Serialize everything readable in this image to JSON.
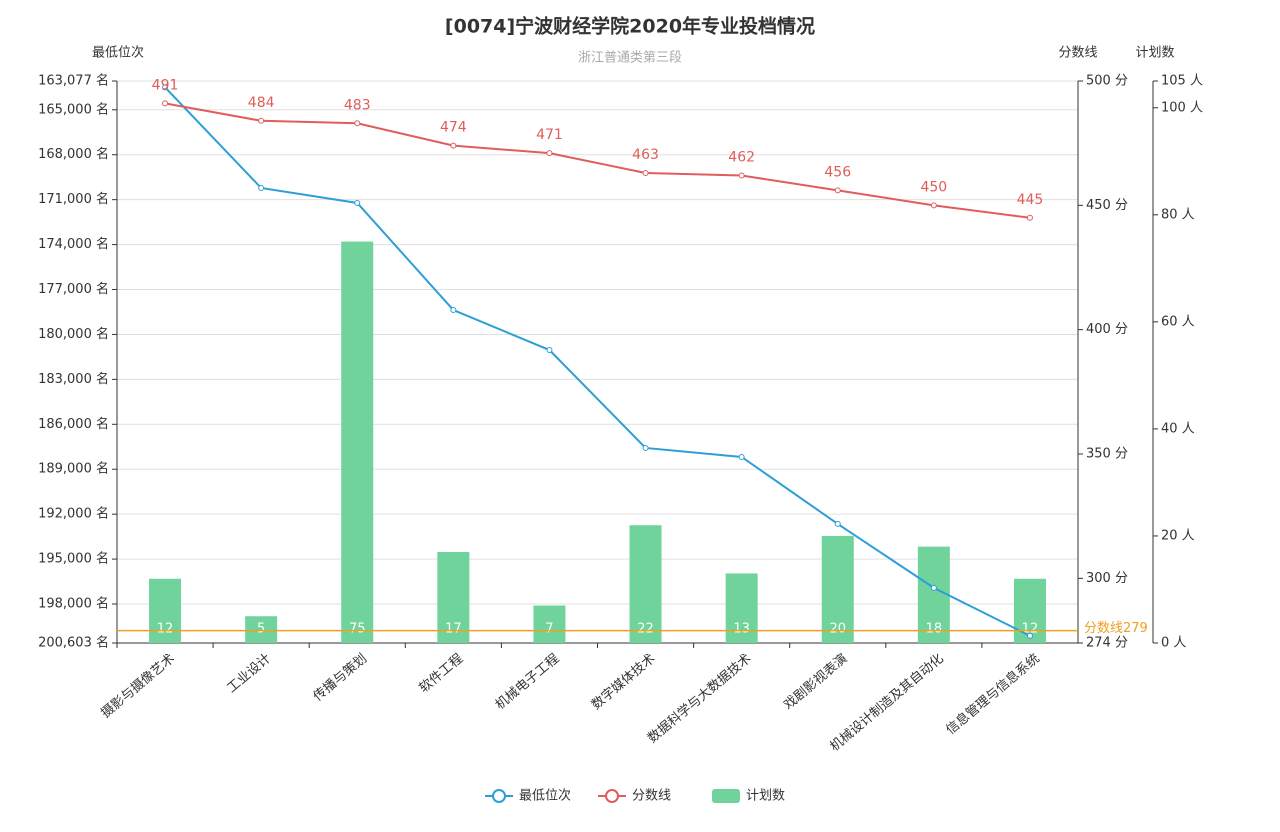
{
  "chart_data": {
    "type": "combo",
    "title": "[0074]宁波财经学院2020年专业投档情况",
    "subtitle": "浙江普通类第三段",
    "y_name": "最低位次",
    "y2_name": "分数线",
    "y3_name": "计划数",
    "categories": [
      "摄影与摄像艺术",
      "工业设计",
      "传播与策划",
      "软件工程",
      "机械电子工程",
      "数字媒体技术",
      "数据科学与大数据技术",
      "戏剧影视表演",
      "机械设计制造及其自动化",
      "信息管理与信息系统"
    ],
    "series": [
      {
        "name": "最低位次",
        "type": "line",
        "axis": "y",
        "color": "#2b9fd6",
        "values": [
          163500,
          170220,
          171220,
          178370,
          181040,
          187580,
          188180,
          192650,
          196920,
          200120
        ]
      },
      {
        "name": "分数线",
        "type": "line",
        "axis": "y2",
        "color": "#e15c5c",
        "values": [
          491,
          484,
          483,
          474,
          471,
          463,
          462,
          456,
          450,
          445
        ]
      },
      {
        "name": "计划数",
        "type": "bar",
        "axis": "y3",
        "color": "#6fd39b",
        "values": [
          12,
          5,
          75,
          17,
          7,
          22,
          13,
          20,
          18,
          12
        ]
      }
    ],
    "ylim": [
      163077,
      200603
    ],
    "y_inverse": true,
    "yticks": [
      {
        "value": 163077,
        "label": "163,077 名"
      },
      {
        "value": 165000,
        "label": "165,000 名"
      },
      {
        "value": 168000,
        "label": "168,000 名"
      },
      {
        "value": 171000,
        "label": "171,000 名"
      },
      {
        "value": 174000,
        "label": "174,000 名"
      },
      {
        "value": 177000,
        "label": "177,000 名"
      },
      {
        "value": 180000,
        "label": "180,000 名"
      },
      {
        "value": 183000,
        "label": "183,000 名"
      },
      {
        "value": 186000,
        "label": "186,000 名"
      },
      {
        "value": 189000,
        "label": "189,000 名"
      },
      {
        "value": 192000,
        "label": "192,000 名"
      },
      {
        "value": 195000,
        "label": "195,000 名"
      },
      {
        "value": 198000,
        "label": "198,000 名"
      },
      {
        "value": 200603,
        "label": "200,603 名"
      }
    ],
    "y2lim": [
      274,
      500
    ],
    "y2ticks": [
      {
        "value": 500,
        "label": "500 分"
      },
      {
        "value": 450,
        "label": "450 分"
      },
      {
        "value": 400,
        "label": "400 分"
      },
      {
        "value": 350,
        "label": "350 分"
      },
      {
        "value": 300,
        "label": "300 分"
      },
      {
        "value": 274,
        "label": "274 分"
      }
    ],
    "y3lim": [
      0,
      105
    ],
    "y3ticks": [
      {
        "value": 0,
        "label": "0 人"
      },
      {
        "value": 20,
        "label": "20 人"
      },
      {
        "value": 40,
        "label": "40 人"
      },
      {
        "value": 60,
        "label": "60 人"
      },
      {
        "value": 80,
        "label": "80 人"
      },
      {
        "value": 100,
        "label": "100 人"
      },
      {
        "value": 105,
        "label": "105 人"
      }
    ],
    "mark_line": {
      "value": 279,
      "label": "分数线279",
      "color": "#f0a020"
    },
    "grid": true
  }
}
